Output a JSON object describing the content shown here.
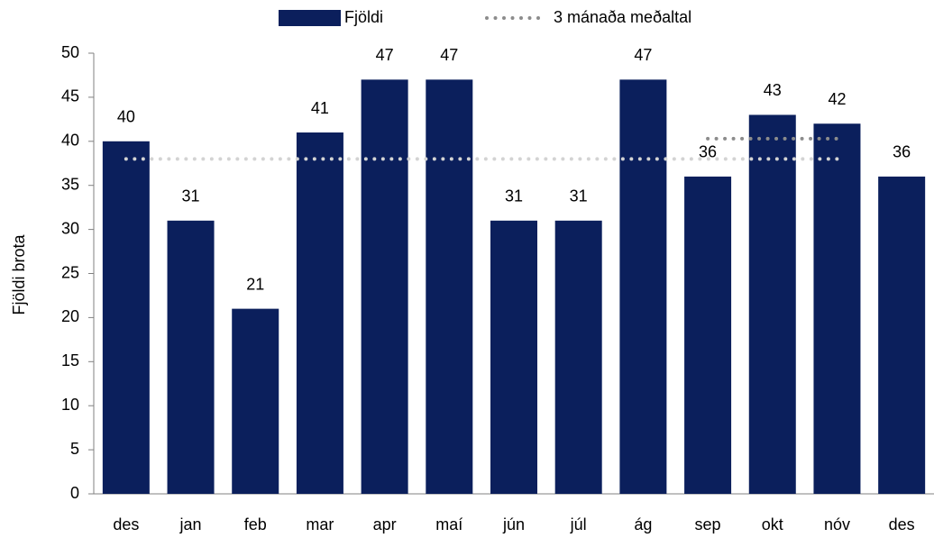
{
  "chart_data": {
    "type": "bar",
    "ylabel": "Fjöldi brota",
    "categories": [
      "des",
      "jan",
      "feb",
      "mar",
      "apr",
      "maí",
      "jún",
      "júl",
      "ág",
      "sep",
      "okt",
      "nóv",
      "des"
    ],
    "series": [
      {
        "name": "Fjöldi",
        "type": "bar",
        "color": "#0b1f5c",
        "values": [
          40,
          31,
          21,
          41,
          47,
          47,
          31,
          31,
          47,
          36,
          43,
          42,
          36
        ]
      },
      {
        "name": "3 mánaða meðaltal",
        "type": "line",
        "color": "#8c8c8c",
        "values": [
          null,
          null,
          null,
          null,
          null,
          null,
          null,
          null,
          null,
          40.3,
          40.3,
          40.3,
          null
        ]
      },
      {
        "type": "line",
        "color": "#d3d3d3",
        "values": [
          38,
          38,
          38,
          38,
          38,
          38,
          38,
          38,
          38,
          38,
          38,
          38,
          null
        ]
      }
    ],
    "ylim": [
      0,
      50
    ],
    "yticks": [
      0,
      5,
      10,
      15,
      20,
      25,
      30,
      35,
      40,
      45,
      50
    ],
    "data_labels": true,
    "legend": "top"
  }
}
